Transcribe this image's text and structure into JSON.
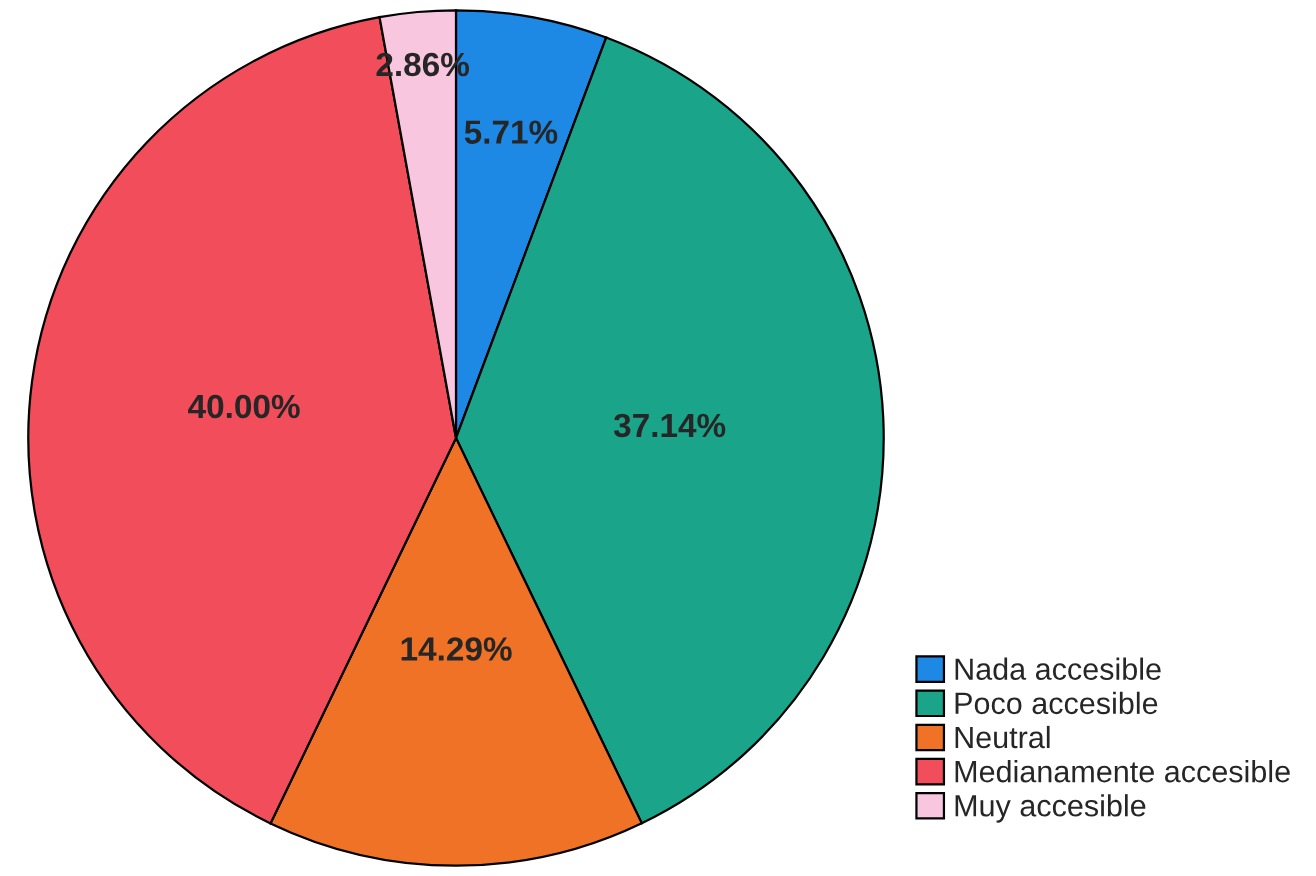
{
  "chart_data": {
    "type": "pie",
    "categories": [
      "Nada accesible",
      "Poco accesible",
      "Neutral",
      "Medianamente accesible",
      "Muy accesible"
    ],
    "values": [
      5.71,
      37.14,
      14.29,
      40.0,
      2.86
    ],
    "value_labels": [
      "5.71%",
      "37.14%",
      "14.29%",
      "40.00%",
      "2.86%"
    ],
    "colors": [
      "#1e88e5",
      "#1aa58a",
      "#f07226",
      "#f24d5a",
      "#f9c6df"
    ],
    "legend": "bottom right"
  }
}
